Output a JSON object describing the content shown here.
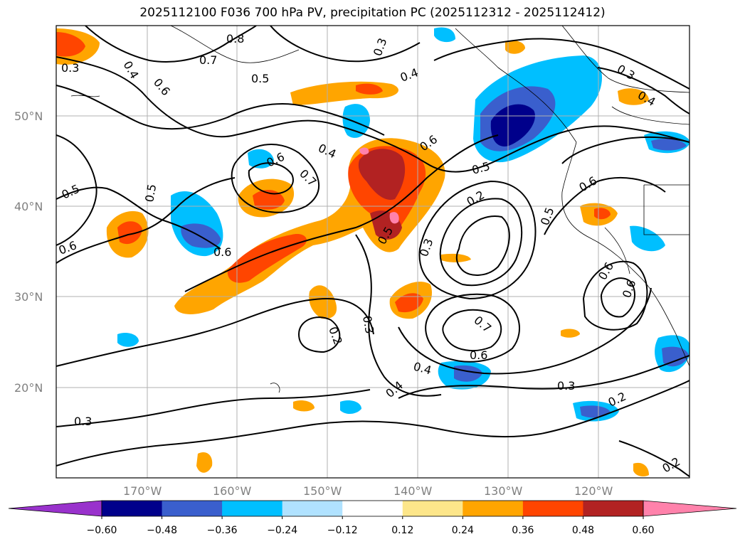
{
  "title": "2025112100 F036 700 hPa PV, precipitation PC (2025112312 - 2025112412)",
  "latitude_labels": [
    "50°N",
    "40°N",
    "30°N",
    "20°N"
  ],
  "longitude_labels": [
    "170°W",
    "160°W",
    "150°W",
    "140°W",
    "130°W",
    "120°W"
  ],
  "contour_labels": [
    "0.3",
    "0.4",
    "0.8",
    "0.7",
    "0.5",
    "0.6",
    "0.3",
    "0.4",
    "0.3",
    "0.4",
    "0.5",
    "0.6",
    "0.4",
    "0.7",
    "0.6",
    "0.5",
    "0.5",
    "0.2",
    "0.3",
    "0.6",
    "0.6",
    "0.5",
    "0.5",
    "0.3",
    "0.2",
    "0.7",
    "0.6",
    "0.4",
    "0.4",
    "0.3",
    "0.2",
    "0.3",
    "0.2",
    "0.6",
    "0.6",
    "0.6"
  ],
  "colorbar": {
    "ticks": [
      "−0.60",
      "−0.48",
      "−0.36",
      "−0.24",
      "−0.12",
      "0.12",
      "0.24",
      "0.36",
      "0.48",
      "0.60"
    ],
    "colors": [
      "#9932cc",
      "#00008b",
      "#3a5fcd",
      "#00bfff",
      "#b0e2ff",
      "#ffffff",
      "#fde68a",
      "#ffa500",
      "#ff4500",
      "#b22222",
      "#ff82ab"
    ],
    "extend": "both"
  },
  "colors": {
    "gridlines": "#b0b0b0",
    "contours": "#000000",
    "coastline": "#000000"
  }
}
